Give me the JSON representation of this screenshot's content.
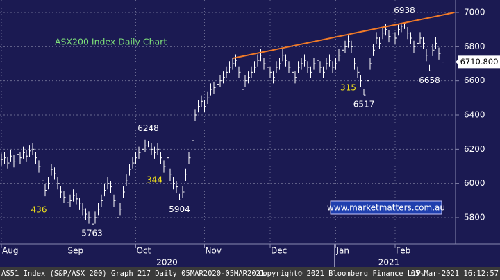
{
  "chart_data": {
    "type": "ohlc",
    "title": "ASX200 Index Daily Chart",
    "title_color": "#7ee07a",
    "bar_color": "#ffffff",
    "background": "#1b1a52",
    "categories": [
      "Aug",
      null,
      null,
      null,
      null,
      null,
      null,
      null,
      null,
      null,
      null,
      null,
      null,
      null,
      null,
      null,
      null,
      null,
      null,
      null,
      null,
      "Sep",
      null,
      null,
      null,
      null,
      null,
      null,
      null,
      null,
      null,
      null,
      null,
      null,
      null,
      null,
      null,
      null,
      null,
      null,
      null,
      null,
      null,
      "Oct",
      null,
      null,
      null,
      null,
      null,
      null,
      null,
      null,
      null,
      null,
      null,
      null,
      null,
      null,
      null,
      null,
      null,
      null,
      null,
      null,
      null,
      "Nov",
      null,
      null,
      null,
      null,
      null,
      null,
      null,
      null,
      null,
      null,
      null,
      null,
      null,
      null,
      null,
      null,
      null,
      null,
      null,
      null,
      "Dec",
      null,
      null,
      null,
      null,
      null,
      null,
      null,
      null,
      null,
      null,
      null,
      null,
      null,
      null,
      null,
      null,
      null,
      null,
      null,
      null,
      "Jan",
      null,
      null,
      null,
      null,
      null,
      null,
      null,
      null,
      null,
      null,
      null,
      null,
      null,
      null,
      null,
      null,
      null,
      null,
      "Feb",
      null,
      null,
      null,
      null,
      null,
      null,
      null,
      null,
      null,
      null,
      null,
      null,
      null,
      null,
      null
    ],
    "years": [
      {
        "label": "2020",
        "start": 0,
        "end": 106
      },
      {
        "label": "2021",
        "start": 107,
        "end": 141
      }
    ],
    "high": [
      6175,
      6185,
      6155,
      6195,
      6165,
      6205,
      6185,
      6215,
      6195,
      6225,
      6235,
      6185,
      6135,
      6055,
      5995,
      6035,
      6115,
      6095,
      6035,
      5985,
      5955,
      5925,
      5935,
      5965,
      5945,
      5915,
      5885,
      5855,
      5835,
      5798,
      5835,
      5885,
      5935,
      5995,
      6035,
      6015,
      5935,
      5835,
      5885,
      5985,
      6055,
      6115,
      6155,
      6185,
      6215,
      6235,
      6255,
      6248,
      6235,
      6215,
      6235,
      6185,
      6135,
      6185,
      6085,
      6035,
      6015,
      5939,
      5985,
      6085,
      6185,
      6285,
      6435,
      6485,
      6515,
      6485,
      6535,
      6585,
      6595,
      6615,
      6635,
      6655,
      6685,
      6715,
      6735,
      6755,
      6685,
      6585,
      6635,
      6655,
      6685,
      6715,
      6755,
      6785,
      6735,
      6715,
      6685,
      6655,
      6715,
      6735,
      6785,
      6755,
      6715,
      6685,
      6655,
      6715,
      6735,
      6755,
      6715,
      6685,
      6735,
      6755,
      6715,
      6685,
      6735,
      6755,
      6715,
      6735,
      6785,
      6815,
      6835,
      6865,
      6835,
      6735,
      6685,
      6635,
      6552,
      6635,
      6735,
      6815,
      6885,
      6855,
      6915,
      6935,
      6895,
      6915,
      6885,
      6935,
      6930,
      6938,
      6915,
      6885,
      6835,
      6855,
      6885,
      6855,
      6785,
      6693,
      6815,
      6855,
      6795,
      6745
    ],
    "low": [
      6105,
      6115,
      6085,
      6125,
      6095,
      6135,
      6115,
      6145,
      6125,
      6155,
      6165,
      6115,
      6065,
      5985,
      5925,
      5965,
      6045,
      6025,
      5965,
      5915,
      5885,
      5855,
      5865,
      5895,
      5875,
      5845,
      5815,
      5785,
      5765,
      5763,
      5765,
      5815,
      5865,
      5925,
      5965,
      5945,
      5865,
      5765,
      5815,
      5915,
      5985,
      6045,
      6085,
      6115,
      6145,
      6165,
      6185,
      6213,
      6165,
      6145,
      6165,
      6115,
      6065,
      6115,
      6015,
      5965,
      5945,
      5904,
      5915,
      6015,
      6115,
      6215,
      6365,
      6415,
      6445,
      6415,
      6465,
      6515,
      6525,
      6545,
      6565,
      6585,
      6615,
      6645,
      6665,
      6685,
      6615,
      6515,
      6565,
      6585,
      6615,
      6645,
      6685,
      6715,
      6665,
      6645,
      6615,
      6585,
      6645,
      6665,
      6715,
      6685,
      6645,
      6615,
      6585,
      6645,
      6665,
      6685,
      6645,
      6615,
      6665,
      6685,
      6645,
      6615,
      6665,
      6685,
      6645,
      6665,
      6715,
      6745,
      6765,
      6795,
      6765,
      6665,
      6615,
      6565,
      6517,
      6565,
      6665,
      6745,
      6815,
      6785,
      6845,
      6865,
      6825,
      6845,
      6815,
      6865,
      6885,
      6903,
      6845,
      6815,
      6765,
      6785,
      6815,
      6785,
      6715,
      6658,
      6745,
      6785,
      6725,
      6675
    ],
    "close": [
      6140,
      6150,
      6120,
      6160,
      6130,
      6170,
      6150,
      6180,
      6160,
      6190,
      6200,
      6150,
      6100,
      6020,
      5960,
      6000,
      6080,
      6060,
      6000,
      5950,
      5920,
      5890,
      5900,
      5930,
      5910,
      5880,
      5850,
      5820,
      5800,
      5763,
      5800,
      5850,
      5900,
      5960,
      6000,
      5980,
      5900,
      5800,
      5850,
      5950,
      6020,
      6080,
      6120,
      6150,
      6180,
      6200,
      6220,
      6248,
      6200,
      6180,
      6200,
      6150,
      6100,
      6150,
      6050,
      6000,
      5980,
      5904,
      5950,
      6050,
      6150,
      6250,
      6400,
      6450,
      6480,
      6450,
      6500,
      6550,
      6560,
      6580,
      6600,
      6620,
      6650,
      6680,
      6700,
      6720,
      6650,
      6550,
      6600,
      6620,
      6650,
      6680,
      6720,
      6750,
      6700,
      6680,
      6650,
      6620,
      6680,
      6700,
      6750,
      6720,
      6680,
      6650,
      6620,
      6680,
      6700,
      6720,
      6680,
      6650,
      6700,
      6720,
      6680,
      6650,
      6700,
      6720,
      6680,
      6700,
      6750,
      6780,
      6800,
      6830,
      6800,
      6700,
      6650,
      6600,
      6517,
      6600,
      6700,
      6780,
      6850,
      6820,
      6880,
      6900,
      6860,
      6880,
      6850,
      6900,
      6920,
      6938,
      6880,
      6850,
      6800,
      6820,
      6850,
      6820,
      6750,
      6658,
      6780,
      6820,
      6760,
      6710
    ],
    "ylim": [
      5646,
      7073
    ],
    "yticks": [
      5800,
      6000,
      6200,
      6400,
      6600,
      6800,
      7000
    ],
    "grid": true,
    "trendline": {
      "color": "#f07a28",
      "from_index": 74,
      "from_value": 6732,
      "to_index": 145,
      "to_value": 7000
    },
    "annotations": [
      {
        "label": "6248",
        "index": 47,
        "value": 6248,
        "side": "above"
      },
      {
        "label": "5904",
        "index": 57,
        "value": 5904,
        "side": "below"
      },
      {
        "label": "5763",
        "index": 29,
        "value": 5763,
        "side": "below"
      },
      {
        "label": "6517",
        "index": 116,
        "value": 6517,
        "side": "below"
      },
      {
        "label": "6938",
        "index": 129,
        "value": 6938,
        "side": "above"
      },
      {
        "label": "6658",
        "index": 137,
        "value": 6658,
        "side": "below"
      }
    ],
    "counts": [
      {
        "label": "436",
        "index": 12,
        "y": 5845
      },
      {
        "label": "344",
        "index": 49,
        "y": 6019
      },
      {
        "label": "315",
        "index": 111,
        "y": 6558
      }
    ],
    "count_color": "#f2e21a",
    "last_price": {
      "value": 6710.8,
      "label": "6710.800"
    },
    "watermark": "www.marketmatters.com.au",
    "footer": {
      "left": "AS51 Index (S&P/ASX 200) Graph 217  Daily 05MAR2020-05MAR2021",
      "center": "Copyright© 2021 Bloomberg Finance L.P.",
      "right": "05-Mar-2021 16:12:57"
    }
  }
}
